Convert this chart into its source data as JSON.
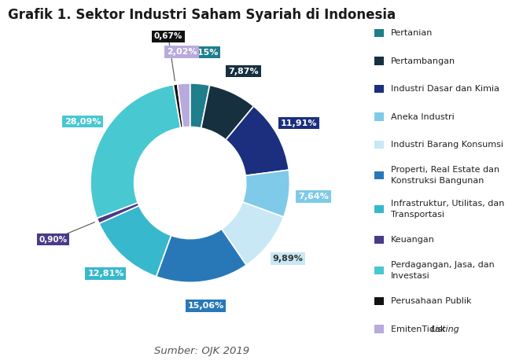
{
  "title": "Grafik 1. Sektor Industri Saham Syariah di Indonesia",
  "source": "Sumber: OJK 2019",
  "labels": [
    "Pertanian",
    "Pertambangan",
    "Industri Dasar dan Kimia",
    "Aneka Industri",
    "Industri Barang Konsumsi",
    "Properti, Real Estate dan\nKonstruksi Bangunan",
    "Infrastruktur, Utilitas, dan\nTransportasi",
    "Keuangan",
    "Perdagangan, Jasa, dan\nInvestasi",
    "Perusahaan Publik",
    "EmitenTidak Listing"
  ],
  "values": [
    3.15,
    7.87,
    11.91,
    7.64,
    9.89,
    15.06,
    12.81,
    0.9,
    28.09,
    0.67,
    2.02
  ],
  "pct_labels": [
    "3,15%",
    "7,87%",
    "11,91%",
    "7,64%",
    "9,89%",
    "15,06%",
    "12,81%",
    "0,90%",
    "28,09%",
    "0,67%",
    "2,02%"
  ],
  "colors": [
    "#1E7E8C",
    "#163040",
    "#1B2F7E",
    "#7ECAE8",
    "#C8E8F5",
    "#2878B8",
    "#38B8CC",
    "#4A3A88",
    "#48C8D0",
    "#111111",
    "#B8AADC"
  ],
  "label_bg_colors": [
    "#1E7E8C",
    "#163040",
    "#1B2F7E",
    "#7ECAE8",
    "#C8E8F5",
    "#2878B8",
    "#38B8CC",
    "#4A3A88",
    "#48C8D0",
    "#111111",
    "#B8AADC"
  ],
  "label_text_colors": [
    "white",
    "white",
    "white",
    "white",
    "#333333",
    "white",
    "white",
    "white",
    "white",
    "white",
    "white"
  ],
  "background_color": "#FFFFFF",
  "title_fontsize": 12,
  "source_fontsize": 9.5
}
